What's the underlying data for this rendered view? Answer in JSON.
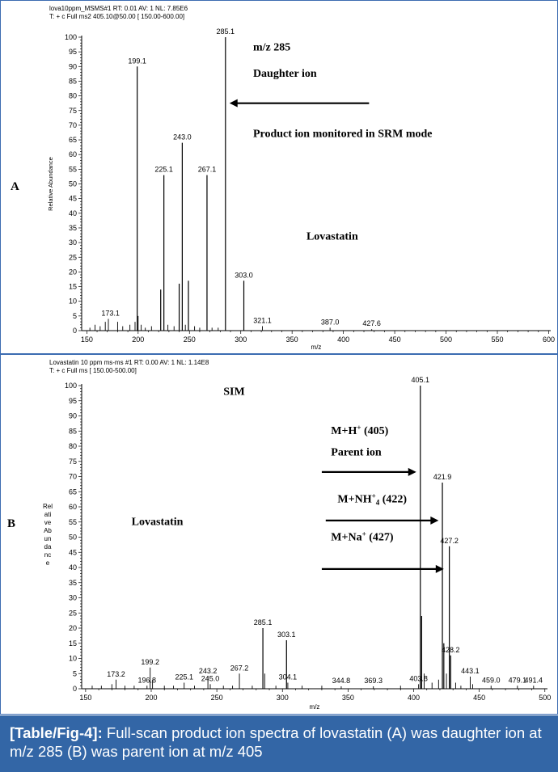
{
  "colors": {
    "accent": "#3366a6",
    "border": "#3c6cb1",
    "mark": "#000000"
  },
  "caption": {
    "label": "[Table/Fig-4]:",
    "text": " Full-scan product ion spectra of lovastatin (A) was daughter ion at m/z 285 (B) was parent ion at m/z 405"
  },
  "chart_data": [
    {
      "type": "bar",
      "panel_label": "A",
      "header_lines": [
        "lova10ppm_MSMS#1  RT: 0.01  AV: 1  NL: 7.85E6",
        "T: + c Full ms2 405.10@50.00 [ 150.00-600.00]"
      ],
      "ylabel": "Relative Abundance",
      "xlabel": "m/z",
      "xlim": [
        145,
        602
      ],
      "ylim": [
        0,
        100
      ],
      "xticks": [
        150,
        200,
        250,
        300,
        350,
        400,
        450,
        500,
        550,
        600
      ],
      "yticks": [
        0,
        5,
        10,
        15,
        20,
        25,
        30,
        35,
        40,
        45,
        50,
        55,
        60,
        65,
        70,
        75,
        80,
        85,
        90,
        95,
        100
      ],
      "peaks": [
        {
          "x": 153,
          "y": 1
        },
        {
          "x": 158,
          "y": 2
        },
        {
          "x": 163,
          "y": 1.5
        },
        {
          "x": 168,
          "y": 3
        },
        {
          "x": 171,
          "y": 4
        },
        {
          "x": 180,
          "y": 3
        },
        {
          "x": 185,
          "y": 1.5
        },
        {
          "x": 192,
          "y": 2
        },
        {
          "x": 197,
          "y": 3
        },
        {
          "x": 199.1,
          "y": 90
        },
        {
          "x": 200,
          "y": 5
        },
        {
          "x": 203,
          "y": 2
        },
        {
          "x": 207,
          "y": 1
        },
        {
          "x": 213,
          "y": 1.5
        },
        {
          "x": 222,
          "y": 14
        },
        {
          "x": 225.1,
          "y": 53
        },
        {
          "x": 229,
          "y": 2
        },
        {
          "x": 235,
          "y": 1.5
        },
        {
          "x": 240,
          "y": 16
        },
        {
          "x": 243.0,
          "y": 64
        },
        {
          "x": 246,
          "y": 2
        },
        {
          "x": 249,
          "y": 17
        },
        {
          "x": 255,
          "y": 1.5
        },
        {
          "x": 260,
          "y": 1
        },
        {
          "x": 267.1,
          "y": 53
        },
        {
          "x": 272,
          "y": 1
        },
        {
          "x": 278,
          "y": 1
        },
        {
          "x": 285.1,
          "y": 100
        },
        {
          "x": 303.0,
          "y": 17
        },
        {
          "x": 321.1,
          "y": 1.5
        },
        {
          "x": 387.0,
          "y": 1
        },
        {
          "x": 427.6,
          "y": 0.5
        }
      ],
      "labels": [
        {
          "x": 199.1,
          "y": 90,
          "text": "199.1"
        },
        {
          "x": 225.1,
          "y": 53,
          "text": "225.1"
        },
        {
          "x": 243.0,
          "y": 64,
          "text": "243.0"
        },
        {
          "x": 267.1,
          "y": 53,
          "text": "267.1"
        },
        {
          "x": 285.1,
          "y": 100,
          "text": "285.1"
        },
        {
          "x": 303.0,
          "y": 17,
          "text": "303.0"
        },
        {
          "x": 173.1,
          "y": 4,
          "text": "173.1"
        },
        {
          "x": 321.1,
          "y": 1.5,
          "text": "321.1"
        },
        {
          "x": 387.0,
          "y": 1,
          "text": "387.0"
        },
        {
          "x": 427.6,
          "y": 0.5,
          "text": "427.6"
        }
      ],
      "annotations": [
        {
          "text": "m/z 285",
          "x": 312,
          "y": 95.5
        },
        {
          "text": "Daughter ion",
          "x": 312,
          "y": 86.5
        },
        {
          "text": "Product ion monitored in SRM mode",
          "x": 312,
          "y": 66
        },
        {
          "text": "Lovastatin",
          "x": 364,
          "y": 31
        }
      ],
      "arrows": [
        {
          "from_x": 425,
          "to_x": 289,
          "y": 77.5
        }
      ]
    },
    {
      "type": "bar",
      "panel_label": "B",
      "header_lines": [
        "Lovastatin 10 ppm ms-ms          #1  RT: 0.00  AV: 1  NL: 1.14E8",
        "T: + c Full ms [ 150.00-500.00]"
      ],
      "ylabel": "Relative Abundance",
      "ylabel_broken": [
        "Rel",
        "ati",
        "ve",
        "Ab",
        "un",
        "da",
        "nc",
        "e"
      ],
      "xlabel": "m/z",
      "xlim": [
        147,
        502
      ],
      "ylim": [
        0,
        100
      ],
      "xticks": [
        150,
        200,
        250,
        300,
        350,
        400,
        450,
        500
      ],
      "yticks": [
        0,
        5,
        10,
        15,
        20,
        25,
        30,
        35,
        40,
        45,
        50,
        55,
        60,
        65,
        70,
        75,
        80,
        85,
        90,
        95,
        100
      ],
      "peaks": [
        {
          "x": 155,
          "y": 1
        },
        {
          "x": 162,
          "y": 1
        },
        {
          "x": 170,
          "y": 1.5
        },
        {
          "x": 173.2,
          "y": 3
        },
        {
          "x": 180,
          "y": 1
        },
        {
          "x": 187,
          "y": 1
        },
        {
          "x": 196.8,
          "y": 1
        },
        {
          "x": 199.2,
          "y": 7
        },
        {
          "x": 201,
          "y": 3
        },
        {
          "x": 210,
          "y": 1
        },
        {
          "x": 217,
          "y": 1
        },
        {
          "x": 225.1,
          "y": 2
        },
        {
          "x": 233,
          "y": 1
        },
        {
          "x": 243.2,
          "y": 4
        },
        {
          "x": 245.0,
          "y": 1.5
        },
        {
          "x": 255,
          "y": 1
        },
        {
          "x": 262,
          "y": 1
        },
        {
          "x": 267.2,
          "y": 5
        },
        {
          "x": 277,
          "y": 1
        },
        {
          "x": 285.1,
          "y": 20
        },
        {
          "x": 286.5,
          "y": 5
        },
        {
          "x": 295,
          "y": 1
        },
        {
          "x": 303.1,
          "y": 16
        },
        {
          "x": 304.1,
          "y": 2
        },
        {
          "x": 315,
          "y": 1
        },
        {
          "x": 330,
          "y": 1
        },
        {
          "x": 344.8,
          "y": 0.8
        },
        {
          "x": 369.3,
          "y": 0.8
        },
        {
          "x": 390,
          "y": 1
        },
        {
          "x": 403.8,
          "y": 1.5
        },
        {
          "x": 405.1,
          "y": 100
        },
        {
          "x": 406.1,
          "y": 24
        },
        {
          "x": 408,
          "y": 5
        },
        {
          "x": 414,
          "y": 2
        },
        {
          "x": 419,
          "y": 3
        },
        {
          "x": 421.9,
          "y": 68
        },
        {
          "x": 423,
          "y": 15
        },
        {
          "x": 425,
          "y": 5
        },
        {
          "x": 427.2,
          "y": 47
        },
        {
          "x": 428.2,
          "y": 11
        },
        {
          "x": 432,
          "y": 2
        },
        {
          "x": 436,
          "y": 1
        },
        {
          "x": 443.1,
          "y": 4
        },
        {
          "x": 445,
          "y": 1.5
        },
        {
          "x": 459.0,
          "y": 1
        },
        {
          "x": 479.1,
          "y": 1
        },
        {
          "x": 491.4,
          "y": 1
        }
      ],
      "labels": [
        {
          "x": 405.1,
          "y": 100,
          "text": "405.1"
        },
        {
          "x": 421.9,
          "y": 68,
          "text": "421.9"
        },
        {
          "x": 427.2,
          "y": 47,
          "text": "427.2"
        },
        {
          "x": 428.2,
          "y": 11,
          "text": "428.2"
        },
        {
          "x": 443.1,
          "y": 4,
          "text": "443.1"
        },
        {
          "x": 285.1,
          "y": 20,
          "text": "285.1"
        },
        {
          "x": 303.1,
          "y": 16,
          "text": "303.1"
        },
        {
          "x": 173.2,
          "y": 3,
          "text": "173.2"
        },
        {
          "x": 199.2,
          "y": 7,
          "text": "199.2"
        },
        {
          "x": 225.1,
          "y": 2,
          "text": "225.1"
        },
        {
          "x": 243.2,
          "y": 4,
          "text": "243.2"
        },
        {
          "x": 267.2,
          "y": 5,
          "text": "267.2"
        },
        {
          "x": 196.8,
          "y": 1,
          "text": "196.8"
        },
        {
          "x": 245.0,
          "y": 1.5,
          "text": "245.0"
        },
        {
          "x": 304.1,
          "y": 2,
          "text": "304.1"
        },
        {
          "x": 344.8,
          "y": 0.8,
          "text": "344.8"
        },
        {
          "x": 369.3,
          "y": 0.8,
          "text": "369.3"
        },
        {
          "x": 403.8,
          "y": 1.5,
          "text": "403.8"
        },
        {
          "x": 459.0,
          "y": 1,
          "text": "459.0"
        },
        {
          "x": 479.1,
          "y": 1,
          "text": "479.1"
        },
        {
          "x": 491.4,
          "y": 1,
          "text": "491.4"
        }
      ],
      "annotations": [
        {
          "text": "SIM",
          "x": 255,
          "y": 97
        },
        {
          "text": "M+H",
          "sup": "+",
          "tail": " (405)",
          "x": 337,
          "y": 84
        },
        {
          "text": "Parent ion",
          "x": 337,
          "y": 77
        },
        {
          "text": "M+NH",
          "sup": "+",
          "sub": "4",
          "tail": " (422)",
          "x": 342,
          "y": 61.5
        },
        {
          "text": "M+Na",
          "sup": "+",
          "tail": " (427)",
          "x": 337,
          "y": 49
        },
        {
          "text": "Lovastatin",
          "x": 185,
          "y": 54
        }
      ],
      "arrows": [
        {
          "from_x": 330,
          "to_x": 402,
          "y": 71.5
        },
        {
          "from_x": 333,
          "to_x": 419,
          "y": 55.5
        },
        {
          "from_x": 330,
          "to_x": 423,
          "y": 39.5
        }
      ]
    }
  ]
}
